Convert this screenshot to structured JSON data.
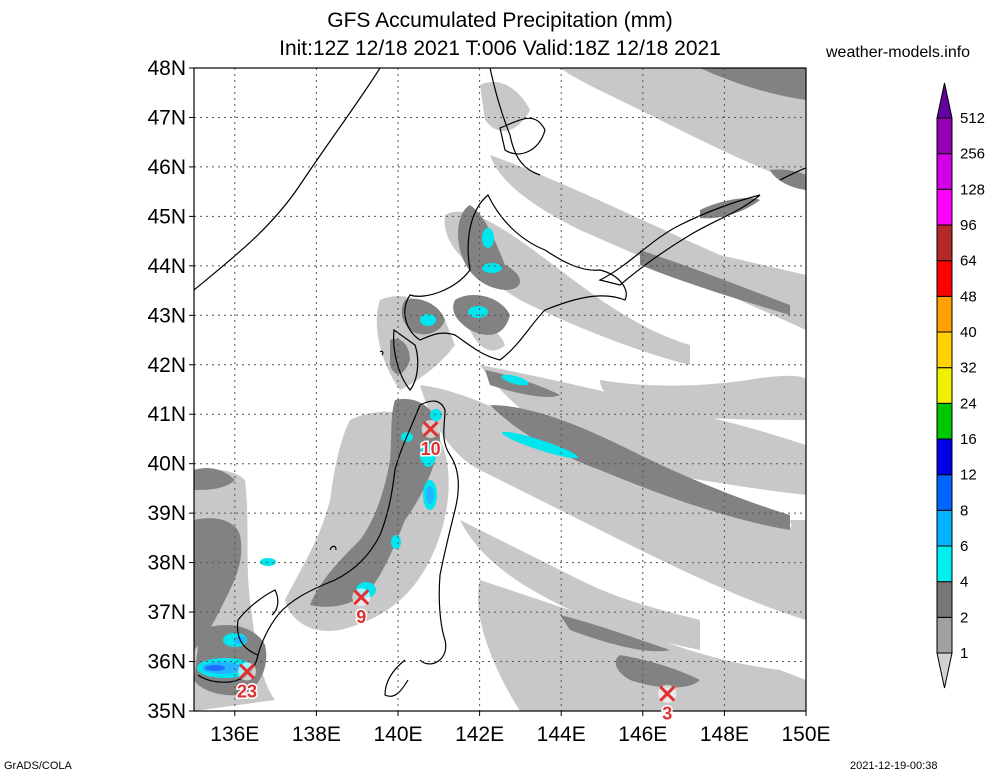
{
  "header": {
    "title_line1": "GFS Accumulated Precipitation (mm)",
    "title_line2": "Init:12Z 12/18 2021 T:006 Valid:18Z 12/18 2021",
    "site": "weather-models.info"
  },
  "footer": {
    "left": "GrADS/COLA",
    "right": "2021-12-19-00:38"
  },
  "map": {
    "lat_labels": [
      "48N",
      "47N",
      "46N",
      "45N",
      "44N",
      "43N",
      "42N",
      "41N",
      "40N",
      "39N",
      "38N",
      "37N",
      "36N",
      "35N"
    ],
    "lon_labels": [
      "136E",
      "138E",
      "140E",
      "142E",
      "144E",
      "146E",
      "148E",
      "150E"
    ],
    "lat_range": [
      35,
      48
    ],
    "lon_range": [
      135,
      150
    ],
    "grid": "dotted",
    "markers": [
      {
        "lon": 136.3,
        "lat": 35.8,
        "label": "23"
      },
      {
        "lon": 139.1,
        "lat": 37.3,
        "label": "9"
      },
      {
        "lon": 140.8,
        "lat": 40.7,
        "label": "10"
      },
      {
        "lon": 146.6,
        "lat": 35.35,
        "label": "3"
      }
    ]
  },
  "colorbar": {
    "labels": [
      "1",
      "2",
      "4",
      "6",
      "8",
      "12",
      "16",
      "24",
      "32",
      "40",
      "48",
      "64",
      "96",
      "128",
      "256",
      "512"
    ],
    "colors": [
      "#d2d2d2",
      "#a0a0a0",
      "#777777",
      "#00f0f0",
      "#00b4ff",
      "#0064ff",
      "#0000e6",
      "#00c800",
      "#f0f000",
      "#ffd200",
      "#ffa000",
      "#ff0000",
      "#b42828",
      "#ff00ff",
      "#d200e6",
      "#9600b4",
      "#6400a0"
    ]
  },
  "legend_colors": {
    "light_gray": "#c8c8c8",
    "dark_gray": "#828282",
    "cyan": "#00e6ef",
    "light_blue": "#22b4ff",
    "blue": "#1e6eff",
    "marker_red": "#e03030"
  }
}
